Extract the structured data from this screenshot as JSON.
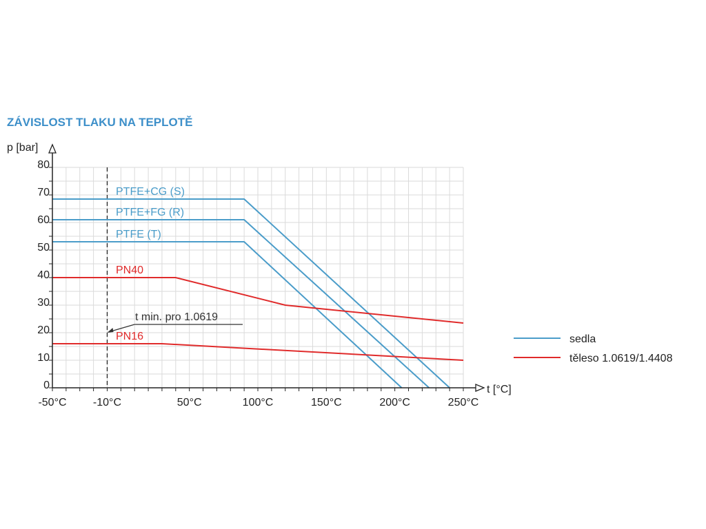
{
  "chart_data": {
    "type": "line",
    "title": "ZÁVISLOST TLAKU NA TEPLOTĚ",
    "ylabel": "p [bar]",
    "xlabel": "t [°C]",
    "xlim": [
      -50,
      250
    ],
    "ylim": [
      0,
      80
    ],
    "x_ticks": [
      -50,
      -10,
      50,
      100,
      150,
      200,
      250
    ],
    "x_tick_labels": [
      "-50°C",
      "-10°C",
      "50°C",
      "100°C",
      "150°C",
      "200°C",
      "250°C"
    ],
    "y_ticks": [
      0,
      10,
      20,
      30,
      40,
      50,
      60,
      70,
      80
    ],
    "y_tick_labels": [
      "0",
      "10",
      "20",
      "30",
      "40",
      "50",
      "60",
      "70",
      "80"
    ],
    "grid": true,
    "colors": {
      "sedla": "#4a9cc9",
      "teleso": "#e02a2a",
      "annotation": "#333333",
      "title": "#3d8fc9"
    },
    "series": [
      {
        "name": "PTFE+CG (S)",
        "group": "sedla",
        "points": [
          [
            -50,
            68.5
          ],
          [
            90,
            68.5
          ],
          [
            240,
            0
          ]
        ]
      },
      {
        "name": "PTFE+FG (R)",
        "group": "sedla",
        "points": [
          [
            -50,
            61
          ],
          [
            90,
            61
          ],
          [
            225,
            0
          ]
        ]
      },
      {
        "name": "PTFE (T)",
        "group": "sedla",
        "points": [
          [
            -50,
            53
          ],
          [
            90,
            53
          ],
          [
            205,
            0
          ]
        ]
      },
      {
        "name": "PN40",
        "group": "teleso",
        "points": [
          [
            -50,
            40
          ],
          [
            40,
            40
          ],
          [
            120,
            30
          ],
          [
            250,
            23.5
          ]
        ]
      },
      {
        "name": "PN16",
        "group": "teleso",
        "points": [
          [
            -50,
            16
          ],
          [
            30,
            16
          ],
          [
            250,
            10
          ]
        ]
      }
    ],
    "vertical_line": {
      "x": -10,
      "style": "dashed"
    },
    "annotation": {
      "text": "t min. pro 1.0619",
      "points_to": [
        -10,
        20
      ],
      "text_anchor": [
        10,
        24
      ]
    },
    "legend": {
      "placement": "right",
      "items": [
        {
          "label": "sedla",
          "group": "sedla"
        },
        {
          "label": "těleso 1.0619/1.4408",
          "group": "teleso"
        }
      ]
    }
  }
}
